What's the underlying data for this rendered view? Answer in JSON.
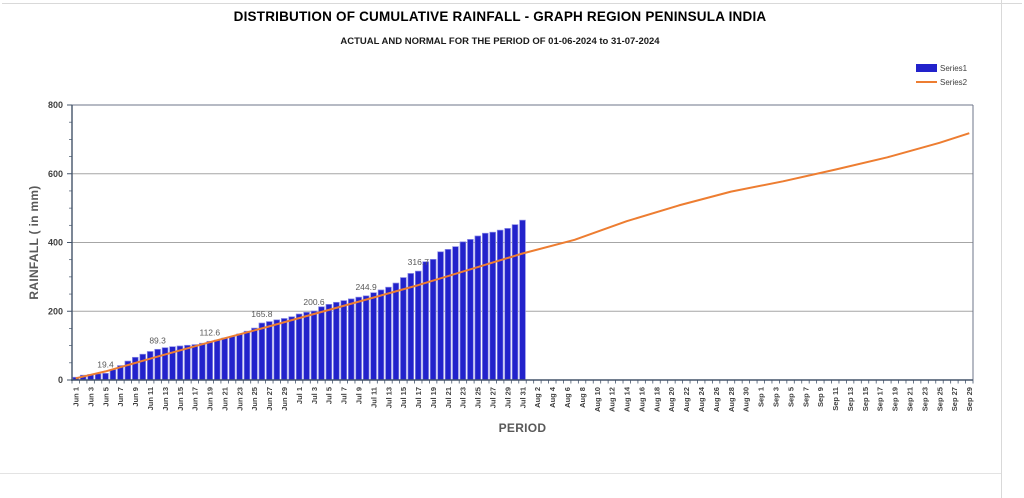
{
  "page": {
    "title": "DISTRIBUTION OF CUMULATIVE RAINFALL - GRAPH REGION PENINSULA INDIA",
    "subtitle": "ACTUAL AND NORMAL FOR THE PERIOD OF 01-06-2024  to 31-07-2024"
  },
  "legend": {
    "items": [
      {
        "label": "Series1",
        "type": "bar",
        "color": "#2222CB"
      },
      {
        "label": "Series2",
        "type": "line",
        "color": "#ED7D31"
      }
    ]
  },
  "axes": {
    "y_title": "RAINFALL ( in mm)",
    "x_title": "PERIOD",
    "y_ticks": [
      0,
      200,
      400,
      600,
      800
    ],
    "y_minor_step": 50
  },
  "chart_data": {
    "type": "bar+line",
    "title": "DISTRIBUTION OF CUMULATIVE RAINFALL - GRAPH REGION PENINSULA INDIA",
    "subtitle": "ACTUAL AND NORMAL FOR THE PERIOD OF 01-06-2024  to 31-07-2024",
    "xlabel": "PERIOD",
    "ylabel": "RAINFALL ( in mm)",
    "ylim": [
      0,
      800
    ],
    "grid": "horizontal",
    "legend_position": "top-right",
    "n_categories": 121,
    "x_tick_every_days": 2,
    "x_tick_labels": [
      "Jun 1",
      "Jun 3",
      "Jun 5",
      "Jun 7",
      "Jun 9",
      "Jun 11",
      "Jun 13",
      "Jun 15",
      "Jun 17",
      "Jun 19",
      "Jun 21",
      "Jun 23",
      "Jun 25",
      "Jun 27",
      "Jun 29",
      "Jul 1",
      "Jul 3",
      "Jul 5",
      "Jul 7",
      "Jul 9",
      "Jul 11",
      "Jul 13",
      "Jul 15",
      "Jul 17",
      "Jul 19",
      "Jul 21",
      "Jul 23",
      "Jul 25",
      "Jul 27",
      "Jul 29",
      "Jul 31",
      "Aug 2",
      "Aug 4",
      "Aug 6",
      "Aug 8",
      "Aug 10",
      "Aug 12",
      "Aug 14",
      "Aug 16",
      "Aug 18",
      "Aug 20",
      "Aug 22",
      "Aug 24",
      "Aug 26",
      "Aug 28",
      "Aug 30",
      "Sep 1",
      "Sep 3",
      "Sep 5",
      "Sep 7",
      "Sep 9",
      "Sep 11",
      "Sep 13",
      "Sep 15",
      "Sep 17",
      "Sep 19",
      "Sep 21",
      "Sep 23",
      "Sep 25",
      "Sep 27",
      "Sep 29"
    ],
    "series": [
      {
        "name": "Series1",
        "type": "bar",
        "color": "#2222CB",
        "edge_color": "#8A8AE6",
        "start_day": 0,
        "note": "cumulative actual rainfall, daily Jun 1 - Jul 31 (values in mm, estimated from bar heights; labelled points exact)",
        "values": [
          8,
          14,
          16,
          18,
          19.4,
          30,
          42,
          55,
          66,
          75,
          83,
          89.3,
          94,
          97,
          99,
          101,
          103,
          107,
          112.6,
          116,
          122,
          127,
          134,
          142,
          151,
          165.8,
          170,
          175,
          179,
          184,
          192,
          197,
          200.6,
          213,
          220,
          226,
          231,
          236,
          241,
          244.9,
          254,
          262,
          270,
          282,
          298,
          310,
          316.7,
          344,
          351,
          373,
          380,
          388,
          402,
          409,
          419,
          427,
          430,
          436,
          441,
          452,
          465
        ]
      },
      {
        "name": "Series2",
        "type": "line",
        "color": "#ED7D31",
        "note": "cumulative normal rainfall Jun 1 - Sep 29, piecewise-linear anchors [day_index, mm]",
        "anchors": [
          [
            0,
            5
          ],
          [
            4,
            25
          ],
          [
            11,
            68
          ],
          [
            18,
            110
          ],
          [
            25,
            150
          ],
          [
            32,
            192
          ],
          [
            39,
            234
          ],
          [
            46,
            276
          ],
          [
            53,
            322
          ],
          [
            60,
            368
          ],
          [
            67,
            408
          ],
          [
            74,
            462
          ],
          [
            81,
            508
          ],
          [
            88,
            548
          ],
          [
            95,
            578
          ],
          [
            102,
            612
          ],
          [
            109,
            648
          ],
          [
            116,
            690
          ],
          [
            120,
            718
          ]
        ]
      }
    ],
    "data_labels": [
      {
        "day": 4,
        "text": "19.4"
      },
      {
        "day": 11,
        "text": "89.3"
      },
      {
        "day": 18,
        "text": "112.6"
      },
      {
        "day": 25,
        "text": "165.8"
      },
      {
        "day": 32,
        "text": "200.6"
      },
      {
        "day": 39,
        "text": "244.9"
      },
      {
        "day": 46,
        "text": "316.7"
      }
    ]
  },
  "colors": {
    "gridline": "#a6a6a6",
    "axis": "#44546a",
    "plot_border": "#6e7588",
    "tick_label": "#404040",
    "axis_title": "#595959",
    "frame": "#d9d9d9"
  }
}
